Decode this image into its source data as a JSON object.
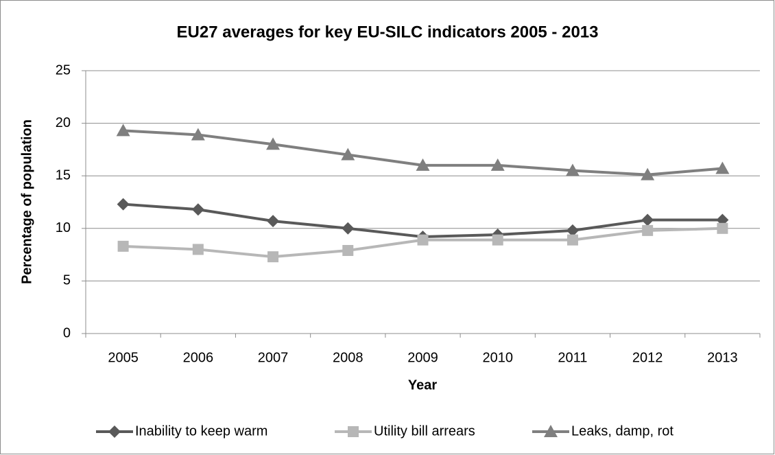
{
  "chart_data": {
    "type": "line",
    "title": "EU27 averages for key EU-SILC indicators 2005 - 2013",
    "x_label": "Year",
    "y_label": "Percentage of population",
    "categories": [
      "2005",
      "2006",
      "2007",
      "2008",
      "2009",
      "2010",
      "2011",
      "2012",
      "2013"
    ],
    "series": [
      {
        "name": "Inability to keep warm",
        "color": "#595959",
        "marker": "diamond",
        "values": [
          12.3,
          11.8,
          10.7,
          10.0,
          9.2,
          9.4,
          9.8,
          10.8,
          10.8
        ]
      },
      {
        "name": "Utility bill arrears",
        "color": "#b7b7b7",
        "marker": "square",
        "values": [
          8.3,
          8.0,
          7.3,
          7.9,
          8.9,
          8.9,
          8.9,
          9.8,
          10.0
        ]
      },
      {
        "name": "Leaks, damp, rot",
        "color": "#7f7f7f",
        "marker": "triangle",
        "values": [
          19.3,
          18.9,
          18.0,
          17.0,
          16.0,
          16.0,
          15.5,
          15.1,
          15.7
        ]
      }
    ],
    "ylim": [
      0,
      25
    ],
    "yticks": [
      0,
      5,
      10,
      15,
      20,
      25
    ],
    "grid": true,
    "legend": "bottom"
  }
}
